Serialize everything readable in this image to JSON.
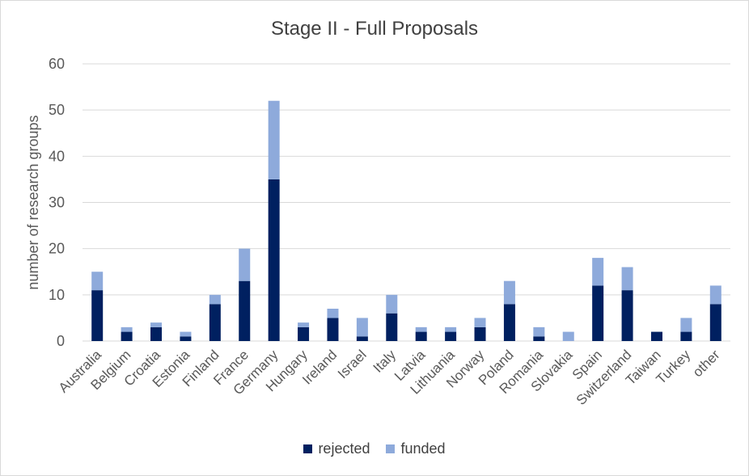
{
  "chart_data": {
    "type": "bar",
    "stacked": true,
    "title": "Stage II - Full Proposals",
    "ylabel": "number of research groups",
    "xlabel": "",
    "ylim": [
      0,
      60
    ],
    "yticks": [
      0,
      10,
      20,
      30,
      40,
      50,
      60
    ],
    "grid": true,
    "legend_position": "bottom",
    "categories": [
      "Australia",
      "Belgium",
      "Croatia",
      "Estonia",
      "Finland",
      "France",
      "Germany",
      "Hungary",
      "Ireland",
      "Israel",
      "Italy",
      "Latvia",
      "Lithuania",
      "Norway",
      "Poland",
      "Romania",
      "Slovakia",
      "Spain",
      "Switzerland",
      "Taiwan",
      "Turkey",
      "other"
    ],
    "series": [
      {
        "name": "rejected",
        "color": "#002060",
        "values": [
          11,
          2,
          3,
          1,
          8,
          13,
          35,
          3,
          5,
          1,
          6,
          2,
          2,
          3,
          8,
          1,
          0,
          12,
          11,
          2,
          2,
          8
        ]
      },
      {
        "name": "funded",
        "color": "#8eaadb",
        "values": [
          4,
          1,
          1,
          1,
          2,
          7,
          17,
          1,
          2,
          4,
          4,
          1,
          1,
          2,
          5,
          2,
          2,
          6,
          5,
          0,
          3,
          4
        ]
      }
    ]
  }
}
